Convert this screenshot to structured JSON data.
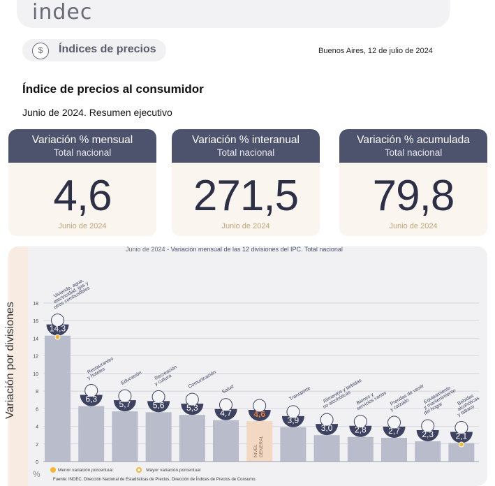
{
  "header": {
    "logo": "indec",
    "section": "Índices de precios",
    "place_date": "Buenos Aires, 12 de julio de 2024"
  },
  "document": {
    "title": "Índice de precios al consumidor",
    "subtitle": "Junio de 2024. Resumen ejecutivo"
  },
  "kpis": [
    {
      "title": "Variación % mensual",
      "scope": "Total nacional",
      "value": "4,6",
      "period": "Junio de 2024"
    },
    {
      "title": "Variación % interanual",
      "scope": "Total nacional",
      "value": "271,5",
      "period": "Junio de 2024"
    },
    {
      "title": "Variación % acumulada",
      "scope": "Total nacional",
      "value": "79,8",
      "period": "Junio de 2024"
    }
  ],
  "colors": {
    "header_bg": "#4d526d",
    "bar": "#b8bccb",
    "bar_general": "#f3d9c4",
    "general_value": "#e07b39",
    "legend_dot": "#f5b731",
    "card_bg": "#faf6ef"
  },
  "chart_data": {
    "type": "bar",
    "caption_period": "Junio de 2024",
    "caption_title": "- Variación mensual de las 12 divisiones del IPC. Total nacional",
    "ylabel": "Variación por divisiones",
    "yunit": "%",
    "ylim": [
      0,
      18
    ],
    "yticks": [
      0,
      2,
      4,
      6,
      8,
      10,
      12,
      14,
      16,
      18
    ],
    "grid": true,
    "categories": [
      "Vivienda, agua, electricidad, gas y otros combustibles",
      "Restaurantes y hoteles",
      "Educación",
      "Recreación y cultura",
      "Comunicación",
      "Salud",
      "NIVEL GENERAL",
      "Transporte",
      "Alimentos y bebidas no alcohólicas",
      "Bienes y servicios varios",
      "Prendas de vestir y calzado",
      "Equipamiento y mantenimiento del hogar",
      "Bebidas alcohólicas y tabaco"
    ],
    "values": [
      14.3,
      6.3,
      5.7,
      5.6,
      5.3,
      4.7,
      4.6,
      3.9,
      3.0,
      2.8,
      2.7,
      2.3,
      2.1
    ],
    "value_labels": [
      "14,3",
      "6,3",
      "5,7",
      "5,6",
      "5,3",
      "4,7",
      "4,6",
      "3,9",
      "3,0",
      "2,8",
      "2,7",
      "2,3",
      "2,1"
    ],
    "label_lines": [
      [
        "Vivienda, agua,",
        "electricidad, gas y",
        "otros combustibles"
      ],
      [
        "Restaurantes",
        "y hoteles"
      ],
      [
        "Educación"
      ],
      [
        "Recreación",
        "y cultura"
      ],
      [
        "Comunicación"
      ],
      [
        "Salud"
      ],
      [],
      [
        "Transporte"
      ],
      [
        "Alimentos y bebidas",
        "no alcohólicas"
      ],
      [
        "Bienes y",
        "servicios varios"
      ],
      [
        "Prendas de vestir",
        "y calzado"
      ],
      [
        "Equipamiento",
        "y mantenimiento",
        "del hogar"
      ],
      [
        "Bebidas",
        "alcohólicas",
        "y tabaco"
      ]
    ],
    "general_label": [
      "NIVEL",
      "GENERAL"
    ],
    "max_marker_index": 0,
    "min_marker_index": 12,
    "legend": [
      "Menor variación porcentual",
      "Mayor variación porcentual"
    ]
  },
  "source": "Fuente: INDEC, Dirección Nacional de Estadísticas de Precios, Dirección de Índices de Precios de Consumo."
}
